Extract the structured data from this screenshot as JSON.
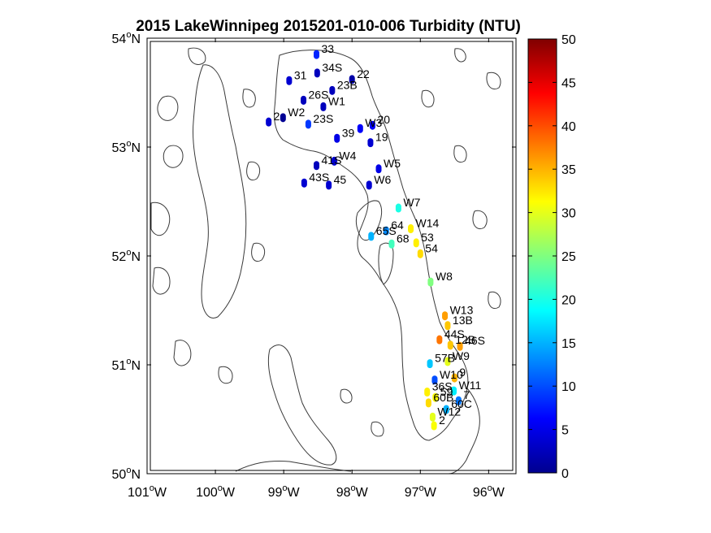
{
  "title": "2015 LakeWinnipeg 2015201-010-006 Turbidity (NTU)",
  "axes": {
    "lon_range": [
      -101,
      -95.6
    ],
    "lat_range": [
      50,
      54
    ],
    "x_ticks": [
      {
        "lon": -101,
        "deg": "101",
        "suffix": "W"
      },
      {
        "lon": -100,
        "deg": "100",
        "suffix": "W"
      },
      {
        "lon": -99,
        "deg": "99",
        "suffix": "W"
      },
      {
        "lon": -98,
        "deg": "98",
        "suffix": "W"
      },
      {
        "lon": -97,
        "deg": "97",
        "suffix": "W"
      },
      {
        "lon": -96,
        "deg": "96",
        "suffix": "W"
      }
    ],
    "y_ticks": [
      {
        "lat": 50,
        "deg": "50",
        "suffix": "N"
      },
      {
        "lat": 51,
        "deg": "51",
        "suffix": "N"
      },
      {
        "lat": 52,
        "deg": "52",
        "suffix": "N"
      },
      {
        "lat": 53,
        "deg": "53",
        "suffix": "N"
      },
      {
        "lat": 54,
        "deg": "54",
        "suffix": "N"
      }
    ],
    "degree_symbol": "o"
  },
  "colorbar": {
    "colormap": "jet",
    "range": [
      0,
      50
    ],
    "ticks": [
      "0",
      "5",
      "10",
      "15",
      "20",
      "25",
      "30",
      "35",
      "40",
      "45",
      "50"
    ]
  },
  "chart_data": {
    "type": "scatter",
    "title": "2015 LakeWinnipeg 2015201-010-006 Turbidity (NTU)",
    "x_unit": "longitude (deg)",
    "y_unit": "latitude (deg)",
    "xlim": [
      -101,
      -95.6
    ],
    "ylim": [
      50,
      54
    ],
    "value_range": [
      0,
      50
    ],
    "stations": [
      {
        "name": "33",
        "lon": -98.52,
        "lat": 53.85,
        "value": 8
      },
      {
        "name": "31",
        "lon": -98.92,
        "lat": 53.61,
        "value": 4
      },
      {
        "name": "34S",
        "lon": -98.51,
        "lat": 53.68,
        "value": 3
      },
      {
        "name": "22",
        "lon": -98.0,
        "lat": 53.62,
        "value": 2
      },
      {
        "name": "23B",
        "lon": -98.29,
        "lat": 53.52,
        "value": 3
      },
      {
        "name": "26S",
        "lon": -98.71,
        "lat": 53.43,
        "value": 3
      },
      {
        "name": "W1",
        "lon": -98.42,
        "lat": 53.37,
        "value": 3
      },
      {
        "name": "2",
        "lon": -99.22,
        "lat": 53.23,
        "value": 4
      },
      {
        "name": "W2",
        "lon": -99.01,
        "lat": 53.27,
        "value": 1
      },
      {
        "name": "23S",
        "lon": -98.64,
        "lat": 53.21,
        "value": 9
      },
      {
        "name": "W3",
        "lon": -97.88,
        "lat": 53.17,
        "value": 6
      },
      {
        "name": "20",
        "lon": -97.7,
        "lat": 53.2,
        "value": 6
      },
      {
        "name": "39",
        "lon": -98.22,
        "lat": 53.08,
        "value": 5
      },
      {
        "name": "19",
        "lon": -97.73,
        "lat": 53.04,
        "value": 4
      },
      {
        "name": "W4",
        "lon": -98.26,
        "lat": 52.87,
        "value": 4
      },
      {
        "name": "41S",
        "lon": -98.52,
        "lat": 52.83,
        "value": 3
      },
      {
        "name": "W5",
        "lon": -97.61,
        "lat": 52.8,
        "value": 5
      },
      {
        "name": "43S",
        "lon": -98.7,
        "lat": 52.67,
        "value": 4
      },
      {
        "name": "45",
        "lon": -98.34,
        "lat": 52.65,
        "value": 4
      },
      {
        "name": "W6",
        "lon": -97.75,
        "lat": 52.65,
        "value": 4
      },
      {
        "name": "W7",
        "lon": -97.32,
        "lat": 52.44,
        "value": 20
      },
      {
        "name": "W14",
        "lon": -97.14,
        "lat": 52.25,
        "value": 32
      },
      {
        "name": "64",
        "lon": -97.5,
        "lat": 52.23,
        "value": 13
      },
      {
        "name": "65S",
        "lon": -97.72,
        "lat": 52.18,
        "value": 15
      },
      {
        "name": "53",
        "lon": -97.06,
        "lat": 52.12,
        "value": 32
      },
      {
        "name": "68",
        "lon": -97.42,
        "lat": 52.11,
        "value": 22
      },
      {
        "name": "54",
        "lon": -97.0,
        "lat": 52.02,
        "value": 33
      },
      {
        "name": "W8",
        "lon": -96.85,
        "lat": 51.76,
        "value": 25
      },
      {
        "name": "W13",
        "lon": -96.64,
        "lat": 51.45,
        "value": 36
      },
      {
        "name": "13B",
        "lon": -96.6,
        "lat": 51.36,
        "value": 34
      },
      {
        "name": "44S",
        "lon": -96.72,
        "lat": 51.23,
        "value": 38
      },
      {
        "name": "12B",
        "lon": -96.56,
        "lat": 51.18,
        "value": 34
      },
      {
        "name": "46S",
        "lon": -96.42,
        "lat": 51.17,
        "value": 36
      },
      {
        "name": "W9",
        "lon": -96.6,
        "lat": 51.03,
        "value": 30
      },
      {
        "name": "57B",
        "lon": -96.86,
        "lat": 51.01,
        "value": 16
      },
      {
        "name": "W10",
        "lon": -96.79,
        "lat": 50.86,
        "value": 10
      },
      {
        "name": "9",
        "lon": -96.5,
        "lat": 50.88,
        "value": 35
      },
      {
        "name": "36S",
        "lon": -96.9,
        "lat": 50.75,
        "value": 32
      },
      {
        "name": "W11",
        "lon": -96.51,
        "lat": 50.76,
        "value": 18
      },
      {
        "name": "60B",
        "lon": -96.88,
        "lat": 50.65,
        "value": 33
      },
      {
        "name": "59",
        "lon": -96.78,
        "lat": 50.7,
        "value": 31
      },
      {
        "name": "7",
        "lon": -96.44,
        "lat": 50.67,
        "value": 12
      },
      {
        "name": "60C",
        "lon": -96.62,
        "lat": 50.59,
        "value": 15
      },
      {
        "name": "W12",
        "lon": -96.82,
        "lat": 50.52,
        "value": 30
      },
      {
        "name": "2",
        "lon": -96.8,
        "lat": 50.44,
        "value": 31
      }
    ]
  }
}
